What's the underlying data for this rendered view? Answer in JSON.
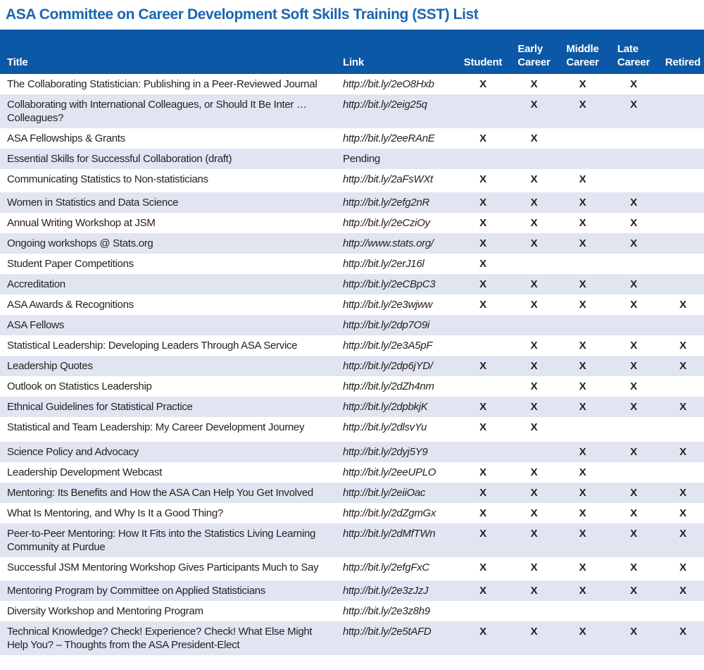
{
  "page_title": "ASA Committee on Career Development Soft Skills Training (SST) List",
  "colors": {
    "header_bg": "#0b58a6",
    "stripe_bg": "#e1e5f2",
    "title_color": "#1a66b0",
    "text_color": "#231f20"
  },
  "table": {
    "mark": "X",
    "header": {
      "title": "Title",
      "link": "Link",
      "student": "Student",
      "early": [
        "Early",
        "Career"
      ],
      "middle": [
        "Middle",
        "Career"
      ],
      "late": [
        "Late",
        "Career"
      ],
      "retired": "Retired"
    },
    "rows": [
      {
        "title": "The Collaborating Statistician: Publishing in a Peer-Reviewed Journal",
        "link": "http://bit.ly/2eO8Hxb",
        "student": "X",
        "early": "X",
        "middle": "X",
        "late": "X",
        "retired": ""
      },
      {
        "title": "Collaborating with International Colleagues, or Should It Be Inter … Colleagues?",
        "link": "http://bit.ly/2eig25q",
        "student": "",
        "early": "X",
        "middle": "X",
        "late": "X",
        "retired": ""
      },
      {
        "title": "ASA Fellowships & Grants",
        "link": "http://bit.ly/2eeRAnE",
        "student": "X",
        "early": "X",
        "middle": "",
        "late": "",
        "retired": ""
      },
      {
        "title": "Essential Skills for Successful Collaboration (draft)",
        "link": "Pending",
        "student": "",
        "early": "",
        "middle": "",
        "late": "",
        "retired": ""
      },
      {
        "title": "Communicating Statistics to Non-statisticians",
        "link": "http://bit.ly/2aFsWXt",
        "student": "X",
        "early": "X",
        "middle": "X",
        "late": "",
        "retired": ""
      },
      {
        "title": "Women in Statistics and Data Science",
        "link": "http://bit.ly/2efg2nR",
        "student": "X",
        "early": "X",
        "middle": "X",
        "late": "X",
        "retired": ""
      },
      {
        "title": "Annual Writing Workshop at JSM",
        "link": "http://bit.ly/2eCziOy",
        "student": "X",
        "early": "X",
        "middle": "X",
        "late": "X",
        "retired": ""
      },
      {
        "title": "Ongoing workshops @ Stats.org",
        "link": "http://www.stats.org/",
        "student": "X",
        "early": "X",
        "middle": "X",
        "late": "X",
        "retired": ""
      },
      {
        "title": "Student Paper Competitions",
        "link": "http://bit.ly/2erJ16l",
        "student": "X",
        "early": "",
        "middle": "",
        "late": "",
        "retired": ""
      },
      {
        "title": "Accreditation",
        "link": "http://bit.ly/2eCBpC3",
        "student": "X",
        "early": "X",
        "middle": "X",
        "late": "X",
        "retired": ""
      },
      {
        "title": "ASA Awards & Recognitions",
        "link": "http://bit.ly/2e3wjww",
        "student": "X",
        "early": "X",
        "middle": "X",
        "late": "X",
        "retired": "X"
      },
      {
        "title": "ASA Fellows",
        "link": "http://bit.ly/2dp7O9i",
        "student": "",
        "early": "",
        "middle": "",
        "late": "",
        "retired": ""
      },
      {
        "title": "Statistical Leadership: Developing Leaders Through ASA Service",
        "link": "http://bit.ly/2e3A5pF",
        "student": "",
        "early": "X",
        "middle": "X",
        "late": "X",
        "retired": "X"
      },
      {
        "title": "Leadership Quotes",
        "link": "http://bit.ly/2dp6jYD/",
        "student": "X",
        "early": "X",
        "middle": "X",
        "late": "X",
        "retired": "X"
      },
      {
        "title": "Outlook on Statistics Leadership",
        "link": "http://bit.ly/2dZh4nm",
        "student": "",
        "early": "X",
        "middle": "X",
        "late": "X",
        "retired": ""
      },
      {
        "title": "Ethnical Guidelines for Statistical Practice",
        "link": "http://bit.ly/2dpbkjK",
        "student": "X",
        "early": "X",
        "middle": "X",
        "late": "X",
        "retired": "X"
      },
      {
        "title": "Statistical and Team Leadership: My Career Development Journey",
        "link": "http://bit.ly/2dlsvYu",
        "student": "X",
        "early": "X",
        "middle": "",
        "late": "",
        "retired": ""
      },
      {
        "title": "Science Policy and Advocacy",
        "link": "http://bit.ly/2dyj5Y9",
        "student": "",
        "early": "",
        "middle": "X",
        "late": "X",
        "retired": "X"
      },
      {
        "title": "Leadership Development Webcast",
        "link": "http://bit.ly/2eeUPLO",
        "student": "X",
        "early": "X",
        "middle": "X",
        "late": "",
        "retired": ""
      },
      {
        "title": "Mentoring: Its Benefits and How the ASA Can Help You Get Involved",
        "link": "http://bit.ly/2eiiOac",
        "student": "X",
        "early": "X",
        "middle": "X",
        "late": "X",
        "retired": "X"
      },
      {
        "title": "What Is Mentoring, and Why Is It a Good Thing?",
        "link": "http://bit.ly/2dZgmGx",
        "student": "X",
        "early": "X",
        "middle": "X",
        "late": "X",
        "retired": "X"
      },
      {
        "title": "Peer-to-Peer Mentoring: How It Fits into the Statistics Living Learning Community at Purdue",
        "link": "http://bit.ly/2dMfTWn",
        "student": "X",
        "early": "X",
        "middle": "X",
        "late": "X",
        "retired": "X"
      },
      {
        "title": "Successful JSM Mentoring Workshop Gives Participants Much to Say",
        "link": "http://bit.ly/2efgFxC",
        "student": "X",
        "early": "X",
        "middle": "X",
        "late": "X",
        "retired": "X"
      },
      {
        "title": "Mentoring Program by Committee on Applied Statisticians",
        "link": "http://bit.ly/2e3zJzJ",
        "student": "X",
        "early": "X",
        "middle": "X",
        "late": "X",
        "retired": "X"
      },
      {
        "title": "Diversity Workshop and Mentoring Program",
        "link": "http://bit.ly/2e3z8h9",
        "student": "",
        "early": "",
        "middle": "",
        "late": "",
        "retired": ""
      },
      {
        "title": "Technical Knowledge? Check! Experience? Check! What Else Might Help You? – Thoughts from the ASA President-Elect",
        "link": "http://bit.ly/2e5tAFD",
        "student": "X",
        "early": "X",
        "middle": "X",
        "late": "X",
        "retired": "X"
      }
    ]
  }
}
